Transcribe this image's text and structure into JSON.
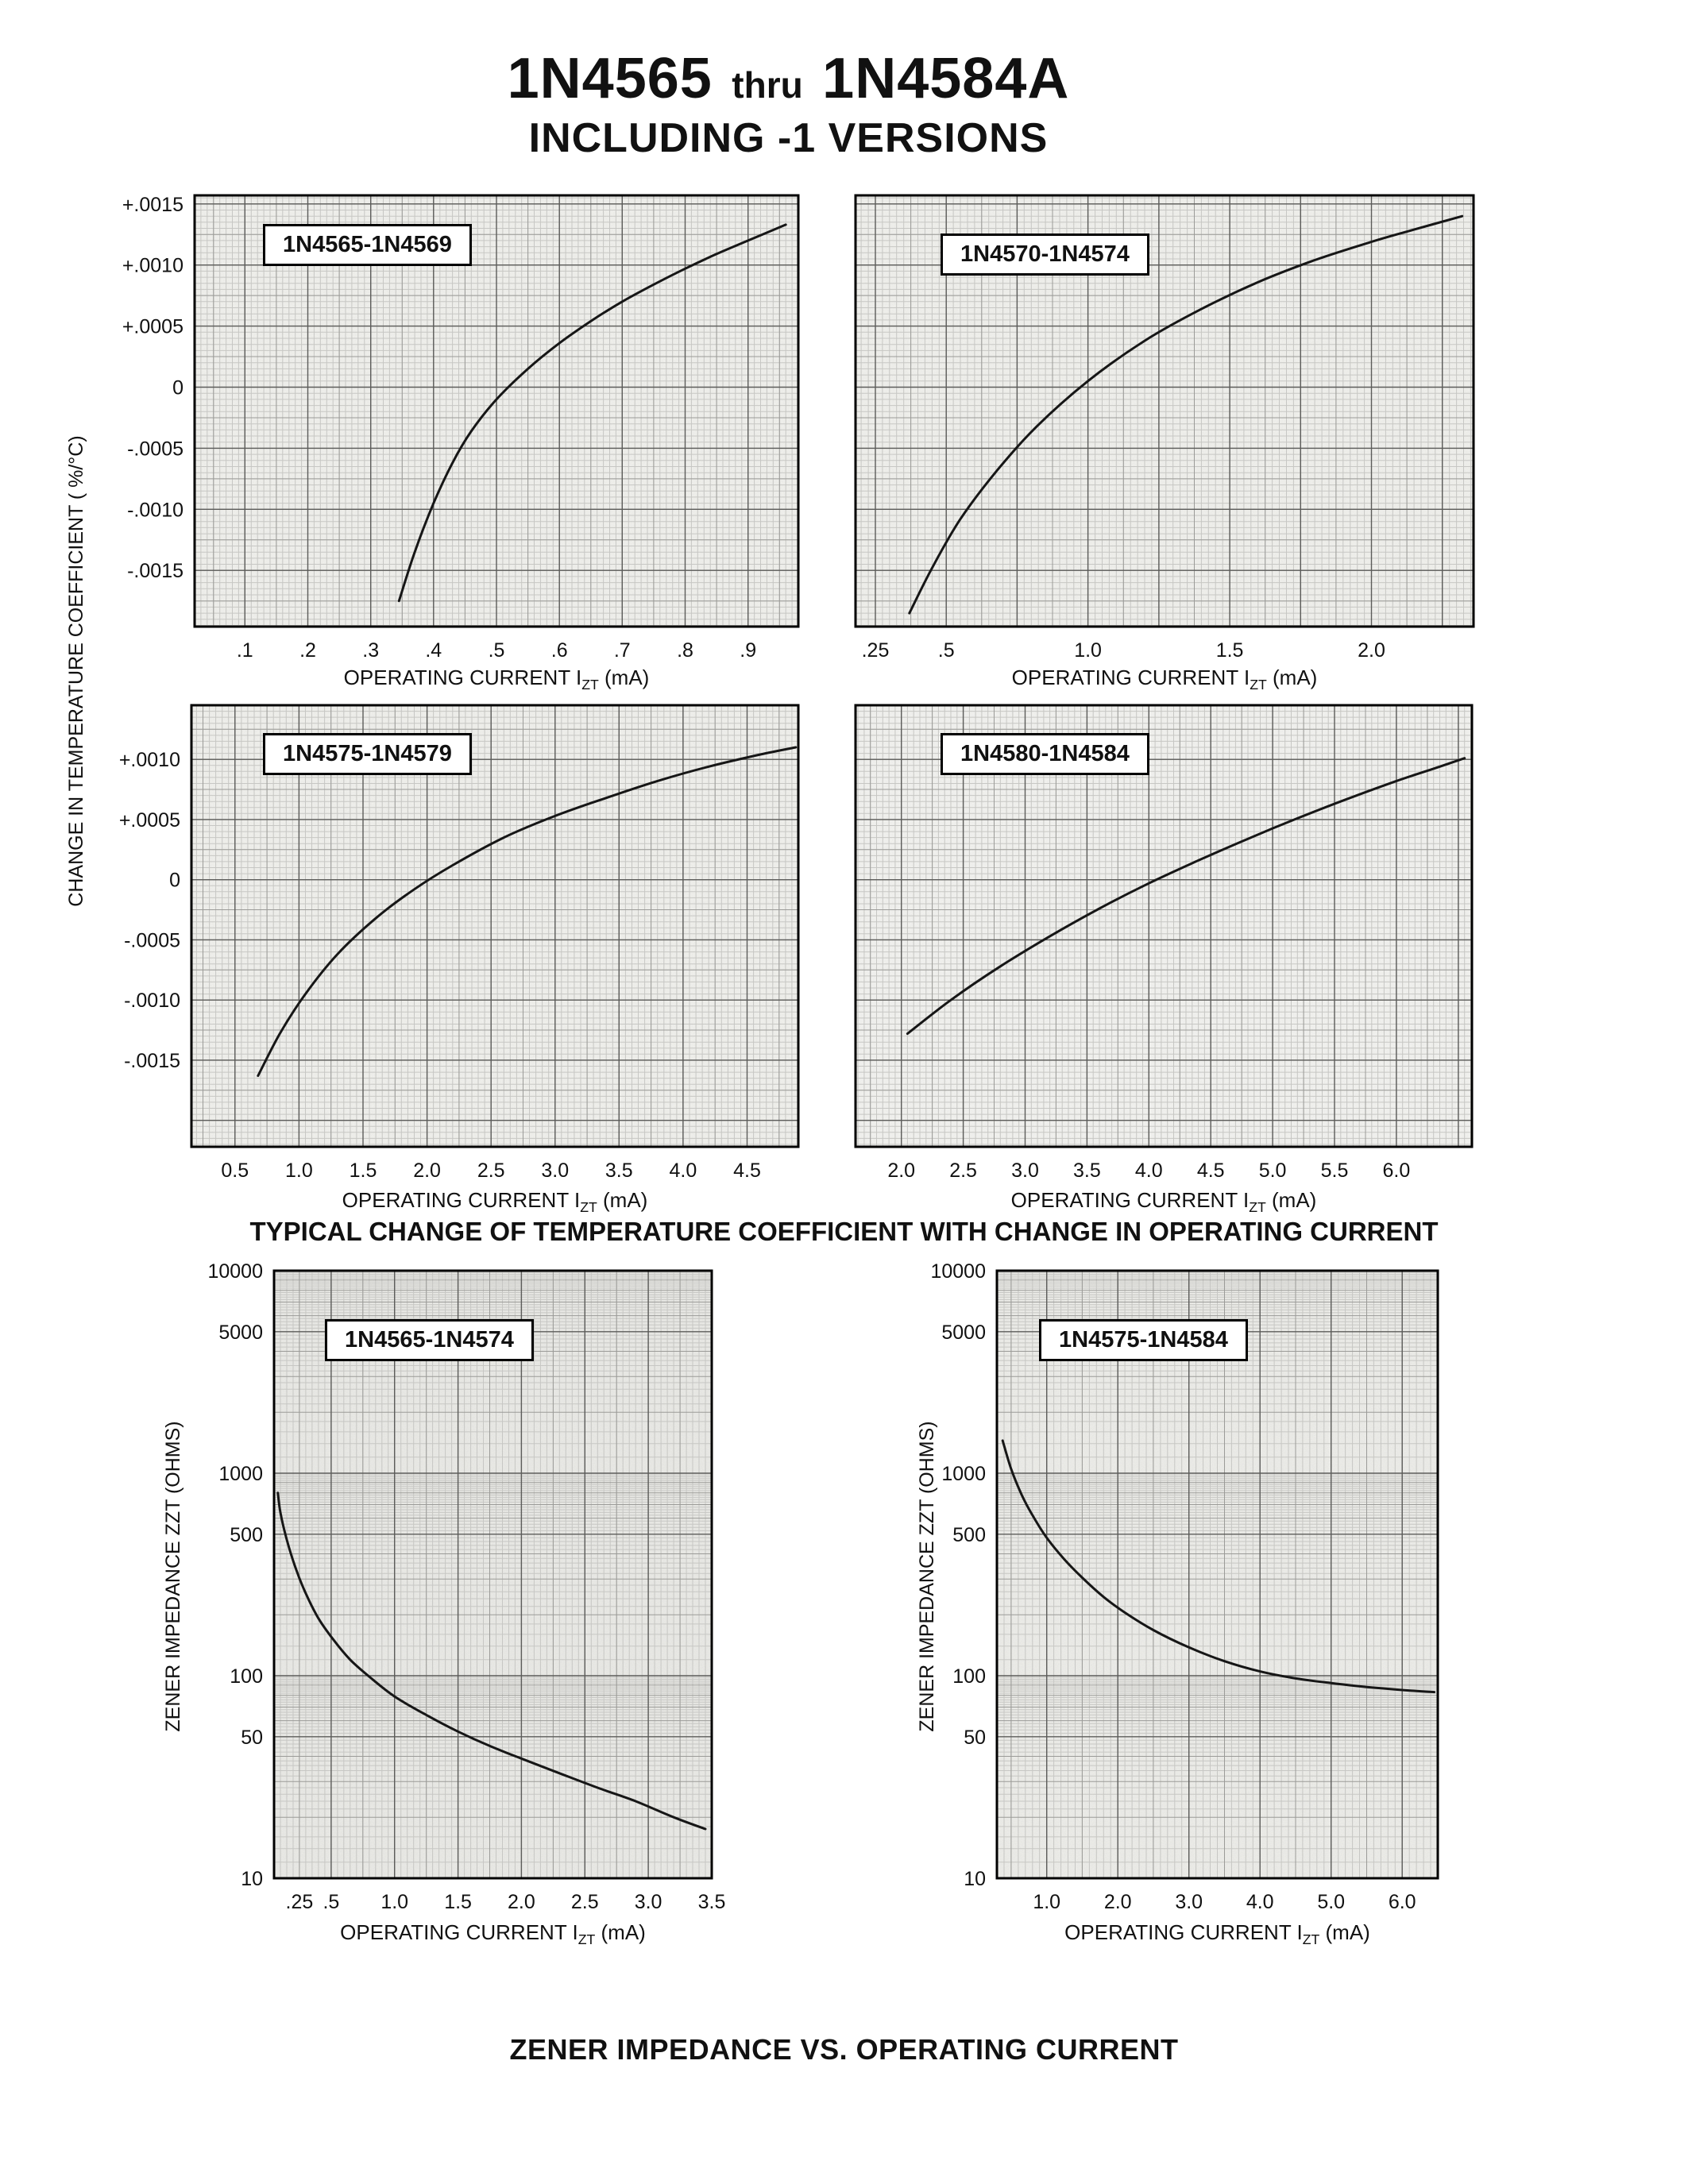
{
  "page": {
    "title_part1": "1N4565",
    "title_thru": "thru",
    "title_part2": "1N4584A",
    "subtitle": "INCLUDING -1 VERSIONS",
    "caption_tc": "TYPICAL CHANGE OF TEMPERATURE COEFFICIENT WITH CHANGE IN OPERATING CURRENT",
    "caption_zz": "ZENER IMPEDANCE VS. OPERATING CURRENT",
    "left_axis_label_tc": "CHANGE IN TEMPERATURE COEFFICIENT ( %/°C)",
    "left_axis_label_zz": "ZENER IMPEDANCE ZZT (OHMS)"
  },
  "chart_data": [
    {
      "type": "line",
      "title": "1N4565-1N4569",
      "xlabel": {
        "pre": "OPERATING CURRENT I",
        "sub": "ZT",
        "post": " (mA)"
      },
      "ylabel": "CHANGE IN TEMPERATURE COEFFICIENT ( %/°C)",
      "xlim": [
        0.02,
        0.98
      ],
      "ylim": [
        -0.00196,
        0.00157
      ],
      "yscale": "linear",
      "x_ticks": [
        {
          "v": 0.1,
          "label": ".1"
        },
        {
          "v": 0.2,
          "label": ".2"
        },
        {
          "v": 0.3,
          "label": ".3"
        },
        {
          "v": 0.4,
          "label": ".4"
        },
        {
          "v": 0.5,
          "label": ".5"
        },
        {
          "v": 0.6,
          "label": ".6"
        },
        {
          "v": 0.7,
          "label": ".7"
        },
        {
          "v": 0.8,
          "label": ".8"
        },
        {
          "v": 0.9,
          "label": ".9"
        }
      ],
      "y_ticks": [
        {
          "v": 0.0015,
          "label": "+.0015"
        },
        {
          "v": 0.001,
          "label": "+.0010"
        },
        {
          "v": 0.0005,
          "label": "+.0005"
        },
        {
          "v": 0,
          "label": "0"
        },
        {
          "v": -0.0005,
          "label": "-.0005"
        },
        {
          "v": -0.001,
          "label": "-.0010"
        },
        {
          "v": -0.0015,
          "label": "-.0015"
        }
      ],
      "grid": {
        "minor_x": 0.01,
        "medium_x": 0.05,
        "major_x": 0.1,
        "minor_y": 5e-05,
        "medium_y": 0.00025,
        "major_y": 0.0005
      },
      "series": [
        {
          "name": "1N4565-1N4569",
          "points": [
            [
              0.345,
              -0.00175
            ],
            [
              0.37,
              -0.00135
            ],
            [
              0.4,
              -0.00095
            ],
            [
              0.43,
              -0.00062
            ],
            [
              0.46,
              -0.00036
            ],
            [
              0.5,
              -0.0001
            ],
            [
              0.55,
              0.00015
            ],
            [
              0.6,
              0.00036
            ],
            [
              0.65,
              0.00054
            ],
            [
              0.7,
              0.0007
            ],
            [
              0.75,
              0.00084
            ],
            [
              0.8,
              0.00097
            ],
            [
              0.85,
              0.00109
            ],
            [
              0.9,
              0.0012
            ],
            [
              0.96,
              0.00133
            ]
          ]
        }
      ]
    },
    {
      "type": "line",
      "title": "1N4570-1N4574",
      "xlabel": {
        "pre": "OPERATING CURRENT I",
        "sub": "ZT",
        "post": " (mA)"
      },
      "ylabel": "CHANGE IN TEMPERATURE COEFFICIENT ( %/°C)",
      "xlim": [
        0.18,
        2.36
      ],
      "ylim": [
        -0.00196,
        0.00157
      ],
      "yscale": "linear",
      "x_ticks": [
        {
          "v": 0.25,
          "label": ".25"
        },
        {
          "v": 0.5,
          "label": ".5"
        },
        {
          "v": 1.0,
          "label": "1.0"
        },
        {
          "v": 1.5,
          "label": "1.5"
        },
        {
          "v": 2.0,
          "label": "2.0"
        }
      ],
      "y_ticks": [],
      "grid": {
        "minor_x": 0.025,
        "medium_x": 0.125,
        "major_x": 0.25,
        "minor_y": 5e-05,
        "medium_y": 0.00025,
        "major_y": 0.0005
      },
      "series": [
        {
          "name": "1N4570-1N4574",
          "points": [
            [
              0.37,
              -0.00185
            ],
            [
              0.45,
              -0.00148
            ],
            [
              0.55,
              -0.00108
            ],
            [
              0.68,
              -0.00068
            ],
            [
              0.82,
              -0.00032
            ],
            [
              1.0,
              5e-05
            ],
            [
              1.2,
              0.00038
            ],
            [
              1.4,
              0.00064
            ],
            [
              1.6,
              0.00086
            ],
            [
              1.8,
              0.00104
            ],
            [
              2.0,
              0.00119
            ],
            [
              2.15,
              0.00129
            ],
            [
              2.32,
              0.0014
            ]
          ]
        }
      ]
    },
    {
      "type": "line",
      "title": "1N4575-1N4579",
      "xlabel": {
        "pre": "OPERATING CURRENT I",
        "sub": "ZT",
        "post": " (mA)"
      },
      "ylabel": "CHANGE IN TEMPERATURE COEFFICIENT ( %/°C)",
      "xlim": [
        0.16,
        4.9
      ],
      "ylim": [
        -0.00222,
        0.00145
      ],
      "yscale": "linear",
      "x_ticks": [
        {
          "v": 0.5,
          "label": "0.5"
        },
        {
          "v": 1.0,
          "label": "1.0"
        },
        {
          "v": 1.5,
          "label": "1.5"
        },
        {
          "v": 2.0,
          "label": "2.0"
        },
        {
          "v": 2.5,
          "label": "2.5"
        },
        {
          "v": 3.0,
          "label": "3.0"
        },
        {
          "v": 3.5,
          "label": "3.5"
        },
        {
          "v": 4.0,
          "label": "4.0"
        },
        {
          "v": 4.5,
          "label": "4.5"
        }
      ],
      "y_ticks": [
        {
          "v": 0.001,
          "label": "+.0010"
        },
        {
          "v": 0.0005,
          "label": "+.0005"
        },
        {
          "v": 0,
          "label": "0"
        },
        {
          "v": -0.0005,
          "label": "-.0005"
        },
        {
          "v": -0.001,
          "label": "-.0010"
        },
        {
          "v": -0.0015,
          "label": "-.0015"
        }
      ],
      "grid": {
        "minor_x": 0.05,
        "medium_x": 0.25,
        "major_x": 0.5,
        "minor_y": 5e-05,
        "medium_y": 0.00025,
        "major_y": 0.0005
      },
      "series": [
        {
          "name": "1N4575-1N4579",
          "points": [
            [
              0.68,
              -0.00163
            ],
            [
              0.85,
              -0.00128
            ],
            [
              1.05,
              -0.00095
            ],
            [
              1.3,
              -0.00062
            ],
            [
              1.6,
              -0.00032
            ],
            [
              1.9,
              -8e-05
            ],
            [
              2.2,
              0.00012
            ],
            [
              2.6,
              0.00035
            ],
            [
              3.0,
              0.00053
            ],
            [
              3.4,
              0.00068
            ],
            [
              3.8,
              0.00082
            ],
            [
              4.2,
              0.00094
            ],
            [
              4.6,
              0.00104
            ],
            [
              4.88,
              0.0011
            ]
          ]
        }
      ]
    },
    {
      "type": "line",
      "title": "1N4580-1N4584",
      "xlabel": {
        "pre": "OPERATING CURRENT I",
        "sub": "ZT",
        "post": " (mA)"
      },
      "ylabel": "CHANGE IN TEMPERATURE COEFFICIENT ( %/°C)",
      "xlim": [
        1.63,
        6.61
      ],
      "ylim": [
        -0.00222,
        0.00145
      ],
      "yscale": "linear",
      "x_ticks": [
        {
          "v": 2.0,
          "label": "2.0"
        },
        {
          "v": 2.5,
          "label": "2.5"
        },
        {
          "v": 3.0,
          "label": "3.0"
        },
        {
          "v": 3.5,
          "label": "3.5"
        },
        {
          "v": 4.0,
          "label": "4.0"
        },
        {
          "v": 4.5,
          "label": "4.5"
        },
        {
          "v": 5.0,
          "label": "5.0"
        },
        {
          "v": 5.5,
          "label": "5.5"
        },
        {
          "v": 6.0,
          "label": "6.0"
        }
      ],
      "y_ticks": [],
      "grid": {
        "minor_x": 0.05,
        "medium_x": 0.25,
        "major_x": 0.5,
        "minor_y": 5e-05,
        "medium_y": 0.00025,
        "major_y": 0.0005
      },
      "series": [
        {
          "name": "1N4580-1N4584",
          "points": [
            [
              2.05,
              -0.00128
            ],
            [
              2.4,
              -0.001
            ],
            [
              2.8,
              -0.00072
            ],
            [
              3.2,
              -0.00047
            ],
            [
              3.6,
              -0.00024
            ],
            [
              4.0,
              -3e-05
            ],
            [
              4.4,
              0.00016
            ],
            [
              4.8,
              0.00034
            ],
            [
              5.2,
              0.00051
            ],
            [
              5.6,
              0.00067
            ],
            [
              6.0,
              0.00082
            ],
            [
              6.35,
              0.00094
            ],
            [
              6.55,
              0.00101
            ]
          ]
        }
      ]
    },
    {
      "type": "line",
      "title": "1N4565-1N4574",
      "xlabel": {
        "pre": "OPERATING CURRENT I",
        "sub": "ZT",
        "post": " (mA)"
      },
      "ylabel": "ZENER IMPEDANCE ZZT (OHMS)",
      "xlim": [
        0.05,
        3.5
      ],
      "ylim": [
        10,
        10000
      ],
      "yscale": "log",
      "x_ticks": [
        {
          "v": 0.25,
          "label": ".25"
        },
        {
          "v": 0.5,
          "label": ".5"
        },
        {
          "v": 1.0,
          "label": "1.0"
        },
        {
          "v": 1.5,
          "label": "1.5"
        },
        {
          "v": 2.0,
          "label": "2.0"
        },
        {
          "v": 2.5,
          "label": "2.5"
        },
        {
          "v": 3.0,
          "label": "3.0"
        },
        {
          "v": 3.5,
          "label": "3.5"
        }
      ],
      "y_ticks": [
        {
          "v": 10000,
          "label": "10000"
        },
        {
          "v": 5000,
          "label": "5000"
        },
        {
          "v": 1000,
          "label": "1000"
        },
        {
          "v": 500,
          "label": "500"
        },
        {
          "v": 100,
          "label": "100"
        },
        {
          "v": 50,
          "label": "50"
        },
        {
          "v": 10,
          "label": "10"
        }
      ],
      "grid": {
        "minor_x": 0.05,
        "medium_x": 0.25,
        "major_x": 0.5,
        "minor_y": null,
        "medium_y": null,
        "major_y": null
      },
      "series": [
        {
          "name": "1N4565-1N4574",
          "points": [
            [
              0.08,
              800
            ],
            [
              0.1,
              640
            ],
            [
              0.15,
              470
            ],
            [
              0.22,
              340
            ],
            [
              0.3,
              255
            ],
            [
              0.4,
              192
            ],
            [
              0.52,
              150
            ],
            [
              0.65,
              120
            ],
            [
              0.8,
              99
            ],
            [
              1.0,
              79
            ],
            [
              1.25,
              64
            ],
            [
              1.5,
              53
            ],
            [
              1.75,
              45
            ],
            [
              2.0,
              39
            ],
            [
              2.3,
              33
            ],
            [
              2.6,
              28
            ],
            [
              2.9,
              24
            ],
            [
              3.2,
              20
            ],
            [
              3.45,
              17.5
            ]
          ]
        }
      ]
    },
    {
      "type": "line",
      "title": "1N4575-1N4584",
      "xlabel": {
        "pre": "OPERATING CURRENT I",
        "sub": "ZT",
        "post": " (mA)"
      },
      "ylabel": "ZENER IMPEDANCE ZZT (OHMS)",
      "xlim": [
        0.3,
        6.5
      ],
      "ylim": [
        10,
        10000
      ],
      "yscale": "log",
      "x_ticks": [
        {
          "v": 1.0,
          "label": "1.0"
        },
        {
          "v": 2.0,
          "label": "2.0"
        },
        {
          "v": 3.0,
          "label": "3.0"
        },
        {
          "v": 4.0,
          "label": "4.0"
        },
        {
          "v": 5.0,
          "label": "5.0"
        },
        {
          "v": 6.0,
          "label": "6.0"
        }
      ],
      "y_ticks": [
        {
          "v": 10000,
          "label": "10000"
        },
        {
          "v": 5000,
          "label": "5000"
        },
        {
          "v": 1000,
          "label": "1000"
        },
        {
          "v": 500,
          "label": "500"
        },
        {
          "v": 100,
          "label": "100"
        },
        {
          "v": 50,
          "label": "50"
        },
        {
          "v": 10,
          "label": "10"
        }
      ],
      "grid": {
        "minor_x": 0.1,
        "medium_x": 0.5,
        "major_x": 1.0,
        "minor_y": null,
        "medium_y": null,
        "major_y": null
      },
      "series": [
        {
          "name": "1N4575-1N4584",
          "points": [
            [
              0.38,
              1450
            ],
            [
              0.5,
              1050
            ],
            [
              0.65,
              780
            ],
            [
              0.8,
              620
            ],
            [
              1.0,
              480
            ],
            [
              1.25,
              375
            ],
            [
              1.5,
              305
            ],
            [
              1.8,
              245
            ],
            [
              2.1,
              205
            ],
            [
              2.5,
              168
            ],
            [
              3.0,
              138
            ],
            [
              3.5,
              118
            ],
            [
              4.0,
              105
            ],
            [
              4.5,
              97
            ],
            [
              5.0,
              92
            ],
            [
              5.5,
              88
            ],
            [
              6.0,
              85
            ],
            [
              6.45,
              83
            ]
          ]
        }
      ]
    }
  ]
}
